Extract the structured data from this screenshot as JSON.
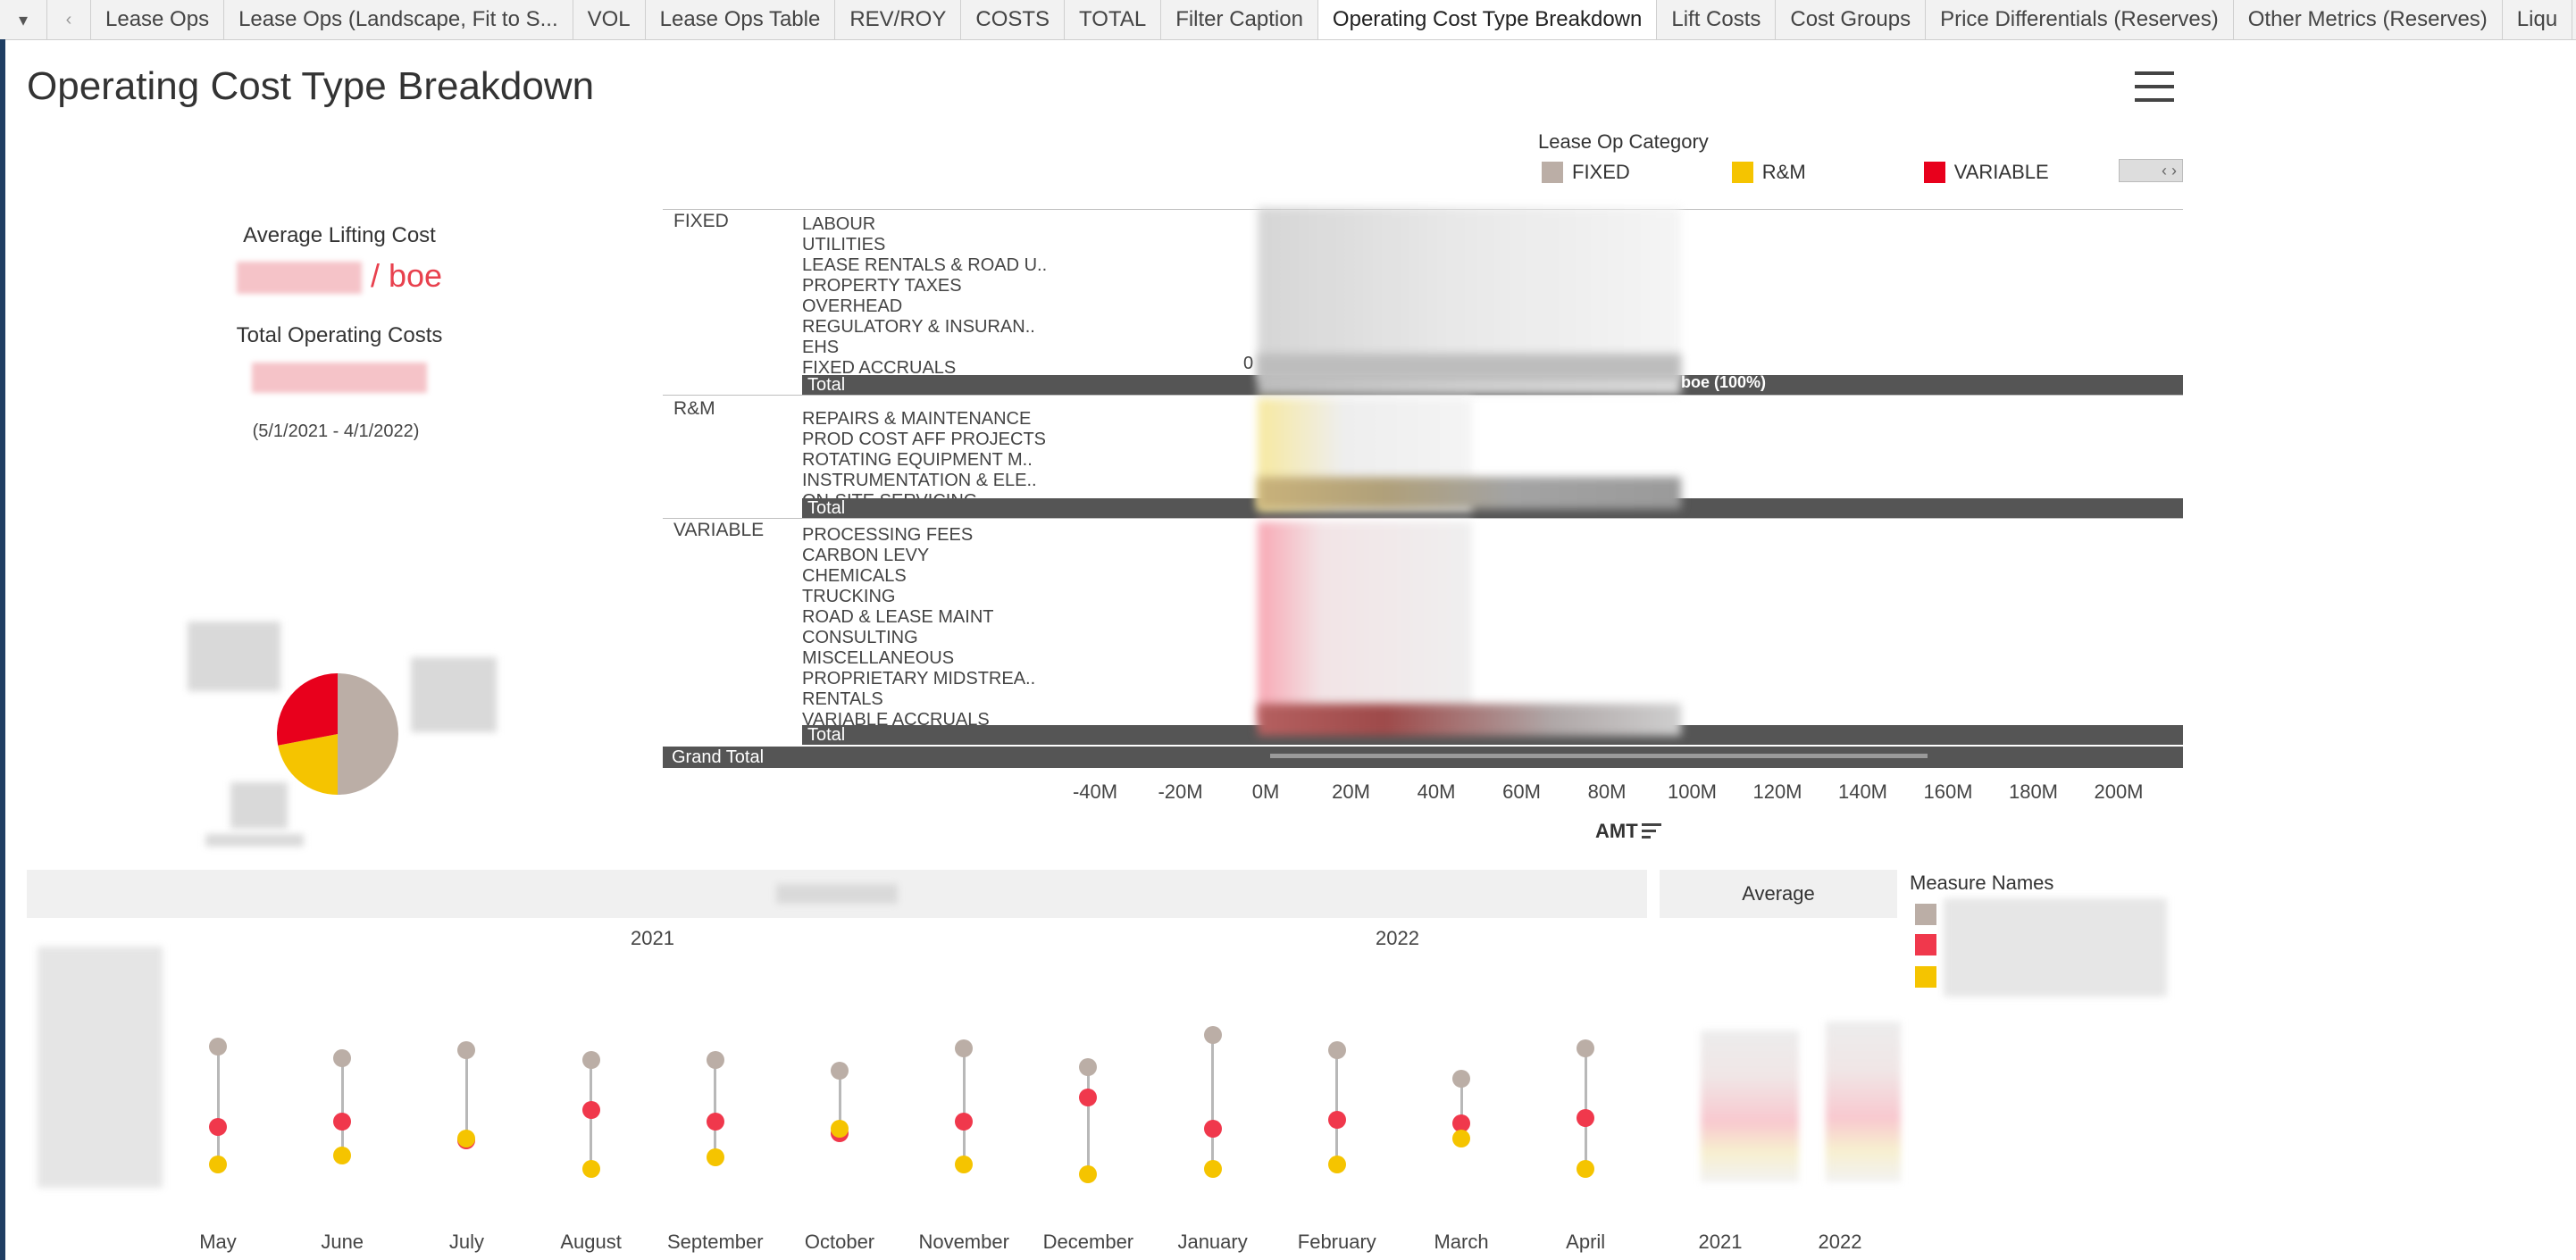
{
  "tabs": {
    "nav_dropdown": "▾",
    "nav_prev": "‹",
    "items": [
      {
        "label": "Lease Ops",
        "active": false
      },
      {
        "label": "Lease Ops (Landscape, Fit to S...",
        "active": false
      },
      {
        "label": "VOL",
        "active": false
      },
      {
        "label": "Lease Ops Table",
        "active": false
      },
      {
        "label": "REV/ROY",
        "active": false
      },
      {
        "label": "COSTS",
        "active": false
      },
      {
        "label": "TOTAL",
        "active": false
      },
      {
        "label": "Filter Caption",
        "active": false
      },
      {
        "label": "Operating Cost Type Breakdown",
        "active": true
      },
      {
        "label": "Lift Costs",
        "active": false
      },
      {
        "label": "Cost Groups",
        "active": false
      },
      {
        "label": "Price Differentials (Reserves)",
        "active": false
      },
      {
        "label": "Other Metrics (Reserves)",
        "active": false
      },
      {
        "label": "Liqu",
        "active": false
      }
    ]
  },
  "page": {
    "title": "Operating Cost Type Breakdown"
  },
  "legend": {
    "title": "Lease Op Category",
    "items": [
      {
        "label": "FIXED",
        "color": "#bbaea6"
      },
      {
        "label": "R&M",
        "color": "#f5c400"
      },
      {
        "label": "VARIABLE",
        "color": "#e8001c"
      }
    ]
  },
  "kpis": {
    "avg_lifting_label": "Average Lifting Cost",
    "avg_lifting_unit": "/ boe",
    "total_opex_label": "Total Operating Costs",
    "date_range": "(5/1/2021 - 4/1/2022)"
  },
  "table": {
    "sections": [
      {
        "category": "FIXED",
        "rows": [
          "LABOUR",
          "UTILITIES",
          "LEASE RENTALS & ROAD U..",
          "PROPERTY TAXES",
          "OVERHEAD",
          "REGULATORY & INSURAN..",
          "EHS",
          "FIXED ACCRUALS"
        ],
        "total_label": "Total",
        "total_pct": "boe (100%)"
      },
      {
        "category": "R&M",
        "rows": [
          "REPAIRS & MAINTENANCE",
          "PROD COST AFF PROJECTS",
          "ROTATING EQUIPMENT M..",
          "INSTRUMENTATION & ELE..",
          "ON-SITE SERVICING"
        ],
        "total_label": "Total"
      },
      {
        "category": "VARIABLE",
        "rows": [
          "PROCESSING FEES",
          "CARBON LEVY",
          "CHEMICALS",
          "TRUCKING",
          "ROAD & LEASE MAINT",
          "CONSULTING",
          "MISCELLANEOUS",
          "PROPRIETARY MIDSTREA..",
          "RENTALS",
          "VARIABLE ACCRUALS"
        ],
        "total_label": "Total"
      }
    ],
    "grand_total_label": "Grand Total",
    "zero_label": "0"
  },
  "axis": {
    "ticks": [
      "-40M",
      "-20M",
      "0M",
      "20M",
      "40M",
      "60M",
      "80M",
      "100M",
      "120M",
      "140M",
      "160M",
      "180M",
      "200M"
    ],
    "label": "AMT"
  },
  "pie": {
    "slices": [
      {
        "name": "FIXED",
        "fraction": 0.5,
        "color": "#bbaea6"
      },
      {
        "name": "R&M",
        "fraction": 0.22,
        "color": "#f5c400"
      },
      {
        "name": "VARIABLE",
        "fraction": 0.28,
        "color": "#e8001c"
      }
    ]
  },
  "bottom": {
    "average_header": "Average",
    "years": [
      "2021",
      "2022"
    ],
    "measure_names_title": "Measure Names",
    "measure_colors": [
      "#bbaea6",
      "#f0384c",
      "#f5c400"
    ],
    "months": [
      "May",
      "June",
      "July",
      "August",
      "September",
      "October",
      "November",
      "December",
      "January",
      "February",
      "March",
      "April"
    ],
    "avg_years": [
      "2021",
      "2022"
    ]
  },
  "chart_data": {
    "type": "scatter",
    "categories": [
      "May",
      "June",
      "July",
      "August",
      "September",
      "October",
      "November",
      "December",
      "January",
      "February",
      "March",
      "April"
    ],
    "series": [
      {
        "color": "#bbaea6",
        "values": [
          0.8,
          0.74,
          0.78,
          0.73,
          0.73,
          0.67,
          0.79,
          0.69,
          0.86,
          0.78,
          0.63,
          0.79
        ]
      },
      {
        "color": "#f0384c",
        "values": [
          0.37,
          0.4,
          0.3,
          0.46,
          0.4,
          0.34,
          0.4,
          0.53,
          0.36,
          0.41,
          0.39,
          0.42
        ]
      },
      {
        "color": "#f5c400",
        "values": [
          0.17,
          0.22,
          0.31,
          0.15,
          0.21,
          0.36,
          0.17,
          0.12,
          0.15,
          0.17,
          0.31,
          0.15
        ]
      }
    ],
    "xlabel": "",
    "ylabel": ""
  }
}
